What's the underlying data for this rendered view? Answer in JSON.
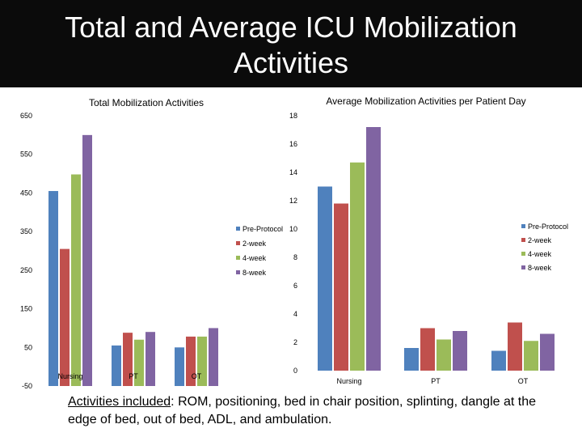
{
  "slide": {
    "title": "Total and Average ICU Mobilization Activities",
    "footnote_lead": "Activities included",
    "footnote_rest": ":  ROM, positioning, bed in chair position, splinting, dangle at the edge of bed, out of bed, ADL, and ambulation."
  },
  "colors": {
    "Pre-Protocol": "#4f81bd",
    "2-week": "#c0504d",
    "4-week": "#9bbb59",
    "8-week": "#8064a2"
  },
  "chart_data": [
    {
      "type": "bar",
      "title": "Total Mobilization Activities",
      "xlabel": "",
      "ylabel": "",
      "categories": [
        "Nursing",
        "PT",
        "OT"
      ],
      "ylim": [
        -50,
        650
      ],
      "yticks": [
        650,
        550,
        450,
        350,
        250,
        150,
        50,
        -50
      ],
      "series": [
        {
          "name": "Pre-Protocol",
          "values": [
            455,
            55,
            50
          ]
        },
        {
          "name": "2-week",
          "values": [
            305,
            88,
            78
          ]
        },
        {
          "name": "4-week",
          "values": [
            498,
            70,
            78
          ]
        },
        {
          "name": "8-week",
          "values": [
            600,
            90,
            100
          ]
        }
      ],
      "legend": "right"
    },
    {
      "type": "bar",
      "title": "Average Mobilization Activities per Patient Day",
      "xlabel": "",
      "ylabel": "",
      "categories": [
        "Nursing",
        "PT",
        "OT"
      ],
      "ylim": [
        0,
        18
      ],
      "yticks": [
        18,
        16,
        14,
        12,
        10,
        8,
        6,
        4,
        2,
        0
      ],
      "series": [
        {
          "name": "Pre-Protocol",
          "values": [
            13.0,
            1.6,
            1.4
          ]
        },
        {
          "name": "2-week",
          "values": [
            11.8,
            3.0,
            3.4
          ]
        },
        {
          "name": "4-week",
          "values": [
            14.7,
            2.2,
            2.1
          ]
        },
        {
          "name": "8-week",
          "values": [
            17.2,
            2.8,
            2.6
          ]
        }
      ],
      "legend": "right"
    }
  ]
}
